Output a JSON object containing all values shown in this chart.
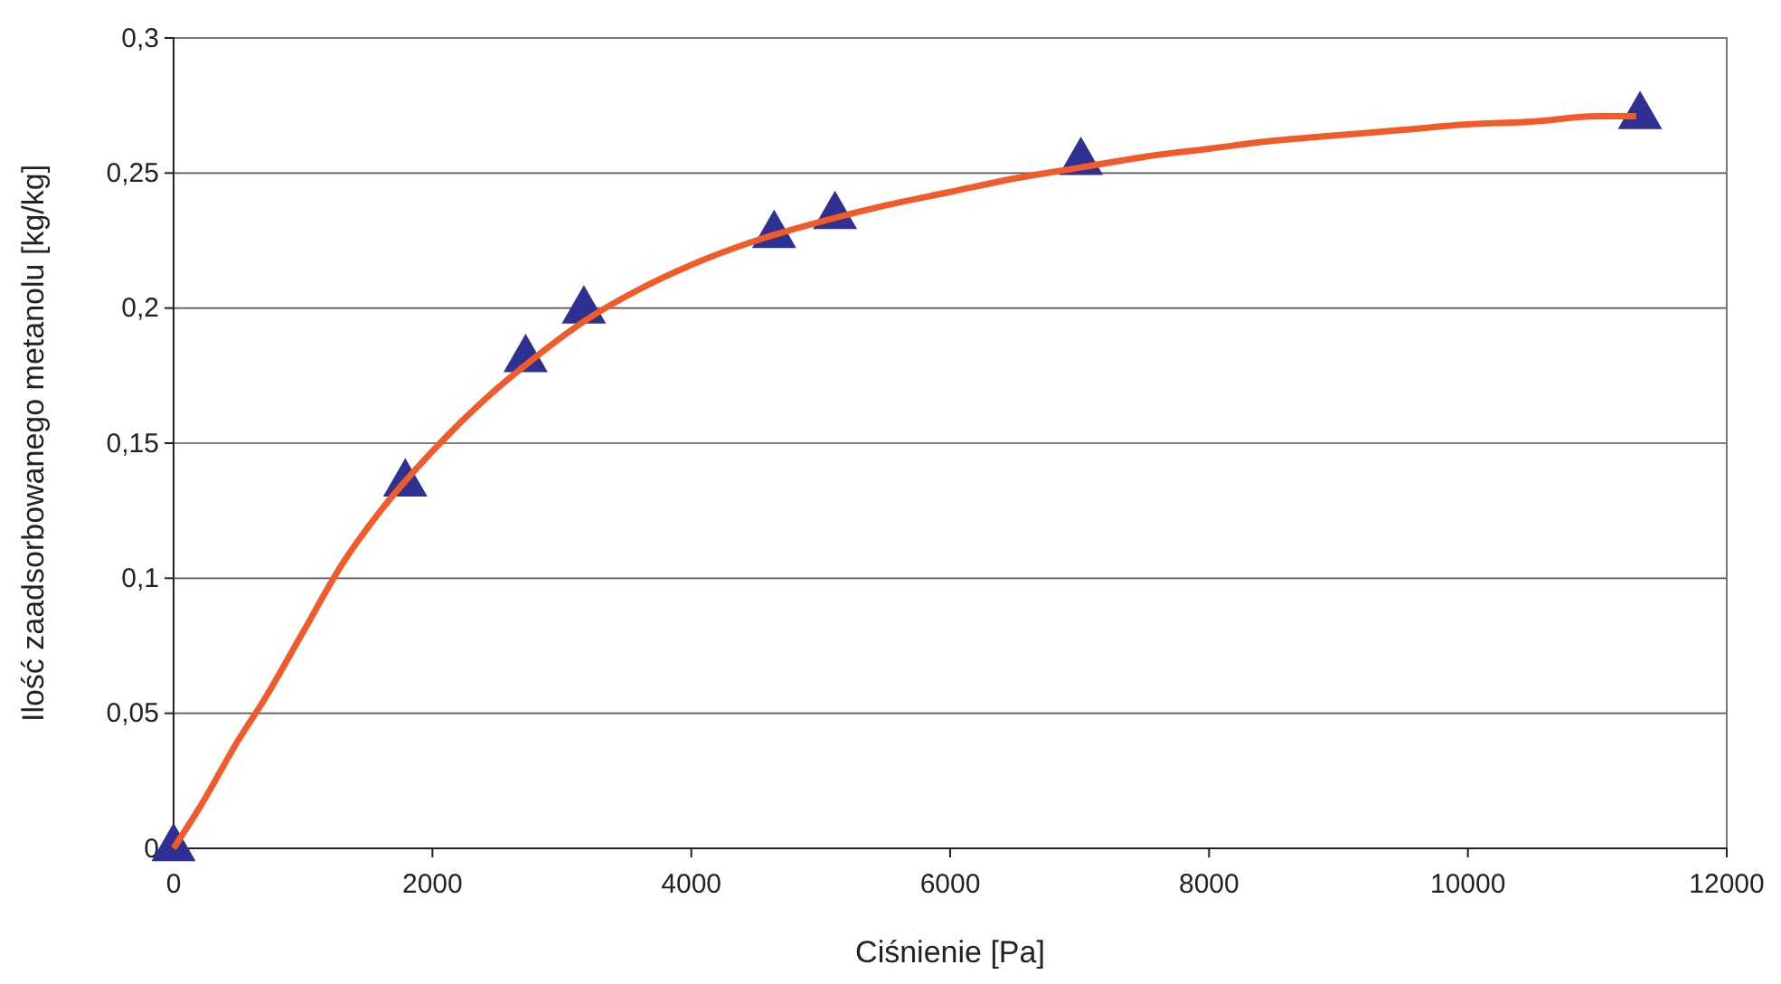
{
  "chart_data": {
    "type": "line",
    "xlabel": "Ciśnienie [Pa]",
    "ylabel": "Ilość zaadsorbowanego metanolu [kg/kg]",
    "xlim": [
      0,
      12000
    ],
    "xticks": [
      0,
      2000,
      4000,
      6000,
      8000,
      10000,
      12000
    ],
    "ylim": [
      0,
      0.3
    ],
    "yticks": [
      {
        "value": 0,
        "label": "0"
      },
      {
        "value": 0.05,
        "label": "0,05"
      },
      {
        "value": 0.1,
        "label": "0,1"
      },
      {
        "value": 0.15,
        "label": "0,15"
      },
      {
        "value": 0.2,
        "label": "0,2"
      },
      {
        "value": 0.25,
        "label": "0,25"
      },
      {
        "value": 0.3,
        "label": "0,3"
      }
    ],
    "grid": "y",
    "series": [
      {
        "color": "#f15a29",
        "marker": "none",
        "line_style": "solid",
        "x": [
          0,
          200,
          500,
          700,
          1000,
          1300,
          1600,
          2000,
          2400,
          2800,
          3200,
          3600,
          4000,
          4500,
          5000,
          5500,
          6000,
          6500,
          7000,
          7500,
          8000,
          8500,
          9000,
          9500,
          10000,
          10500,
          11000,
          11300
        ],
        "values": [
          0,
          0.015,
          0.04,
          0.055,
          0.08,
          0.105,
          0.125,
          0.147,
          0.166,
          0.182,
          0.196,
          0.207,
          0.216,
          0.225,
          0.232,
          0.238,
          0.243,
          0.248,
          0.252,
          0.256,
          0.259,
          0.262,
          0.264,
          0.266,
          0.268,
          0.269,
          0.271,
          0.271
        ]
      },
      {
        "type": "scatter",
        "color": "#2e3192",
        "marker": "triangle",
        "x": [
          0,
          1790,
          2720,
          3170,
          4640,
          5110,
          7010,
          11330
        ],
        "values": [
          0,
          0.135,
          0.181,
          0.199,
          0.227,
          0.234,
          0.254,
          0.271
        ]
      }
    ]
  }
}
